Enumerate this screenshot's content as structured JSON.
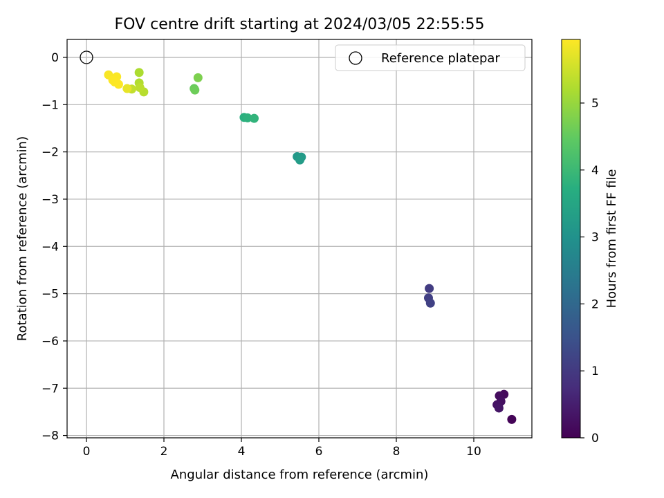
{
  "chart_data": {
    "type": "scatter",
    "title": "FOV centre drift starting at 2024/03/05 22:55:55",
    "xlabel": "Angular distance from reference (arcmin)",
    "ylabel": "Rotation from reference (arcmin)",
    "xlim": [
      -0.5,
      11.5
    ],
    "ylim": [
      -8.05,
      0.38
    ],
    "xticks": [
      0,
      2,
      4,
      6,
      8,
      10
    ],
    "yticks": [
      0,
      -1,
      -2,
      -3,
      -4,
      -5,
      -6,
      -7,
      -8
    ],
    "xtick_labels": [
      "0",
      "2",
      "4",
      "6",
      "8",
      "10"
    ],
    "ytick_labels": [
      "0",
      "−1",
      "−2",
      "−3",
      "−4",
      "−5",
      "−6",
      "−7",
      "−8"
    ],
    "grid": true,
    "legend": {
      "position": "top-right",
      "entries": [
        {
          "label": "Reference platepar",
          "marker": "open-circle"
        }
      ]
    },
    "reference_point": {
      "x": 0,
      "y": 0
    },
    "colorbar": {
      "label": "Hours from first FF file",
      "colormap": "viridis",
      "range": [
        0,
        5.95
      ],
      "ticks": [
        0,
        1,
        2,
        3,
        4,
        5
      ],
      "tick_labels": [
        "0",
        "1",
        "2",
        "3",
        "4",
        "5"
      ]
    },
    "points": [
      {
        "x": 10.98,
        "y": -7.66,
        "hours": 0.05
      },
      {
        "x": 10.78,
        "y": -7.13,
        "hours": 0.15
      },
      {
        "x": 10.66,
        "y": -7.16,
        "hours": 0.2
      },
      {
        "x": 10.7,
        "y": -7.28,
        "hours": 0.25
      },
      {
        "x": 10.6,
        "y": -7.35,
        "hours": 0.3
      },
      {
        "x": 10.65,
        "y": -7.42,
        "hours": 0.35
      },
      {
        "x": 8.85,
        "y": -4.89,
        "hours": 1.05
      },
      {
        "x": 8.83,
        "y": -5.09,
        "hours": 1.1
      },
      {
        "x": 8.88,
        "y": -5.2,
        "hours": 1.15
      },
      {
        "x": 5.44,
        "y": -2.1,
        "hours": 3.15
      },
      {
        "x": 5.55,
        "y": -2.11,
        "hours": 3.2
      },
      {
        "x": 5.51,
        "y": -2.17,
        "hours": 3.25
      },
      {
        "x": 4.07,
        "y": -1.27,
        "hours": 3.75
      },
      {
        "x": 4.16,
        "y": -1.28,
        "hours": 3.8
      },
      {
        "x": 4.33,
        "y": -1.29,
        "hours": 3.85
      },
      {
        "x": 2.78,
        "y": -0.66,
        "hours": 4.55
      },
      {
        "x": 2.8,
        "y": -0.69,
        "hours": 4.6
      },
      {
        "x": 2.88,
        "y": -0.43,
        "hours": 4.75
      },
      {
        "x": 1.36,
        "y": -0.32,
        "hours": 5.2
      },
      {
        "x": 1.36,
        "y": -0.54,
        "hours": 5.25
      },
      {
        "x": 1.48,
        "y": -0.73,
        "hours": 5.3
      },
      {
        "x": 1.38,
        "y": -0.64,
        "hours": 5.35
      },
      {
        "x": 1.17,
        "y": -0.67,
        "hours": 5.4
      },
      {
        "x": 1.05,
        "y": -0.66,
        "hours": 5.75
      },
      {
        "x": 0.57,
        "y": -0.37,
        "hours": 5.9
      },
      {
        "x": 0.78,
        "y": -0.41,
        "hours": 5.92
      },
      {
        "x": 0.68,
        "y": -0.48,
        "hours": 5.93
      },
      {
        "x": 0.73,
        "y": -0.52,
        "hours": 5.94
      },
      {
        "x": 0.83,
        "y": -0.57,
        "hours": 5.95
      }
    ]
  }
}
